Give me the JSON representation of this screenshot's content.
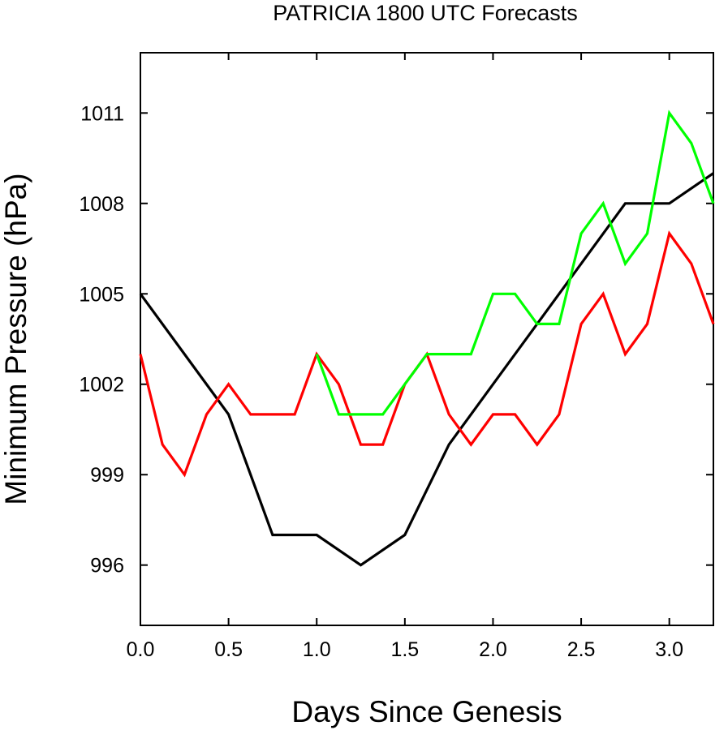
{
  "chart_data": {
    "type": "line",
    "title": "PATRICIA 1800 UTC Forecasts",
    "xlabel": "Days Since Genesis",
    "ylabel": "Minimum Pressure (hPa)",
    "xlim": [
      0.0,
      3.25
    ],
    "ylim": [
      994,
      1013
    ],
    "xticks": [
      "0.0",
      "0.5",
      "1.0",
      "1.5",
      "2.0",
      "2.5",
      "3.0"
    ],
    "yticks": [
      "996",
      "999",
      "1002",
      "1005",
      "1008",
      "1011"
    ],
    "grid": false,
    "series": [
      {
        "color": "#000000",
        "x": [
          0.0,
          0.5,
          0.75,
          1.0,
          1.25,
          1.5,
          1.75,
          2.0,
          2.25,
          2.5,
          2.75,
          3.0,
          3.25
        ],
        "values": [
          1005,
          1001,
          997,
          997,
          996,
          997,
          1000,
          1002,
          1004,
          1006,
          1008,
          1008,
          1009
        ]
      },
      {
        "color": "#ff0000",
        "x": [
          0.0,
          0.125,
          0.25,
          0.375,
          0.5,
          0.625,
          0.75,
          0.875,
          1.0,
          1.125,
          1.25,
          1.375,
          1.5,
          1.625,
          1.75,
          1.875,
          2.0,
          2.125,
          2.25,
          2.375,
          2.5,
          2.625,
          2.75,
          2.875,
          3.0,
          3.125,
          3.25
        ],
        "values": [
          1003,
          1000,
          999,
          1001,
          1002,
          1001,
          1001,
          1001,
          1003,
          1002,
          1000,
          1000,
          1002,
          1003,
          1001,
          1000,
          1001,
          1001,
          1000,
          1001,
          1004,
          1005,
          1003,
          1004,
          1007,
          1006,
          1004
        ]
      },
      {
        "color": "#00ff00",
        "x": [
          1.0,
          1.125,
          1.25,
          1.375,
          1.5,
          1.625,
          1.75,
          1.875,
          2.0,
          2.125,
          2.25,
          2.375,
          2.5,
          2.625,
          2.75,
          2.875,
          3.0,
          3.125,
          3.25
        ],
        "values": [
          1003,
          1001,
          1001,
          1001,
          1002,
          1003,
          1003,
          1003,
          1005,
          1005,
          1004,
          1004,
          1007,
          1008,
          1006,
          1007,
          1011,
          1010,
          1008
        ]
      }
    ]
  }
}
